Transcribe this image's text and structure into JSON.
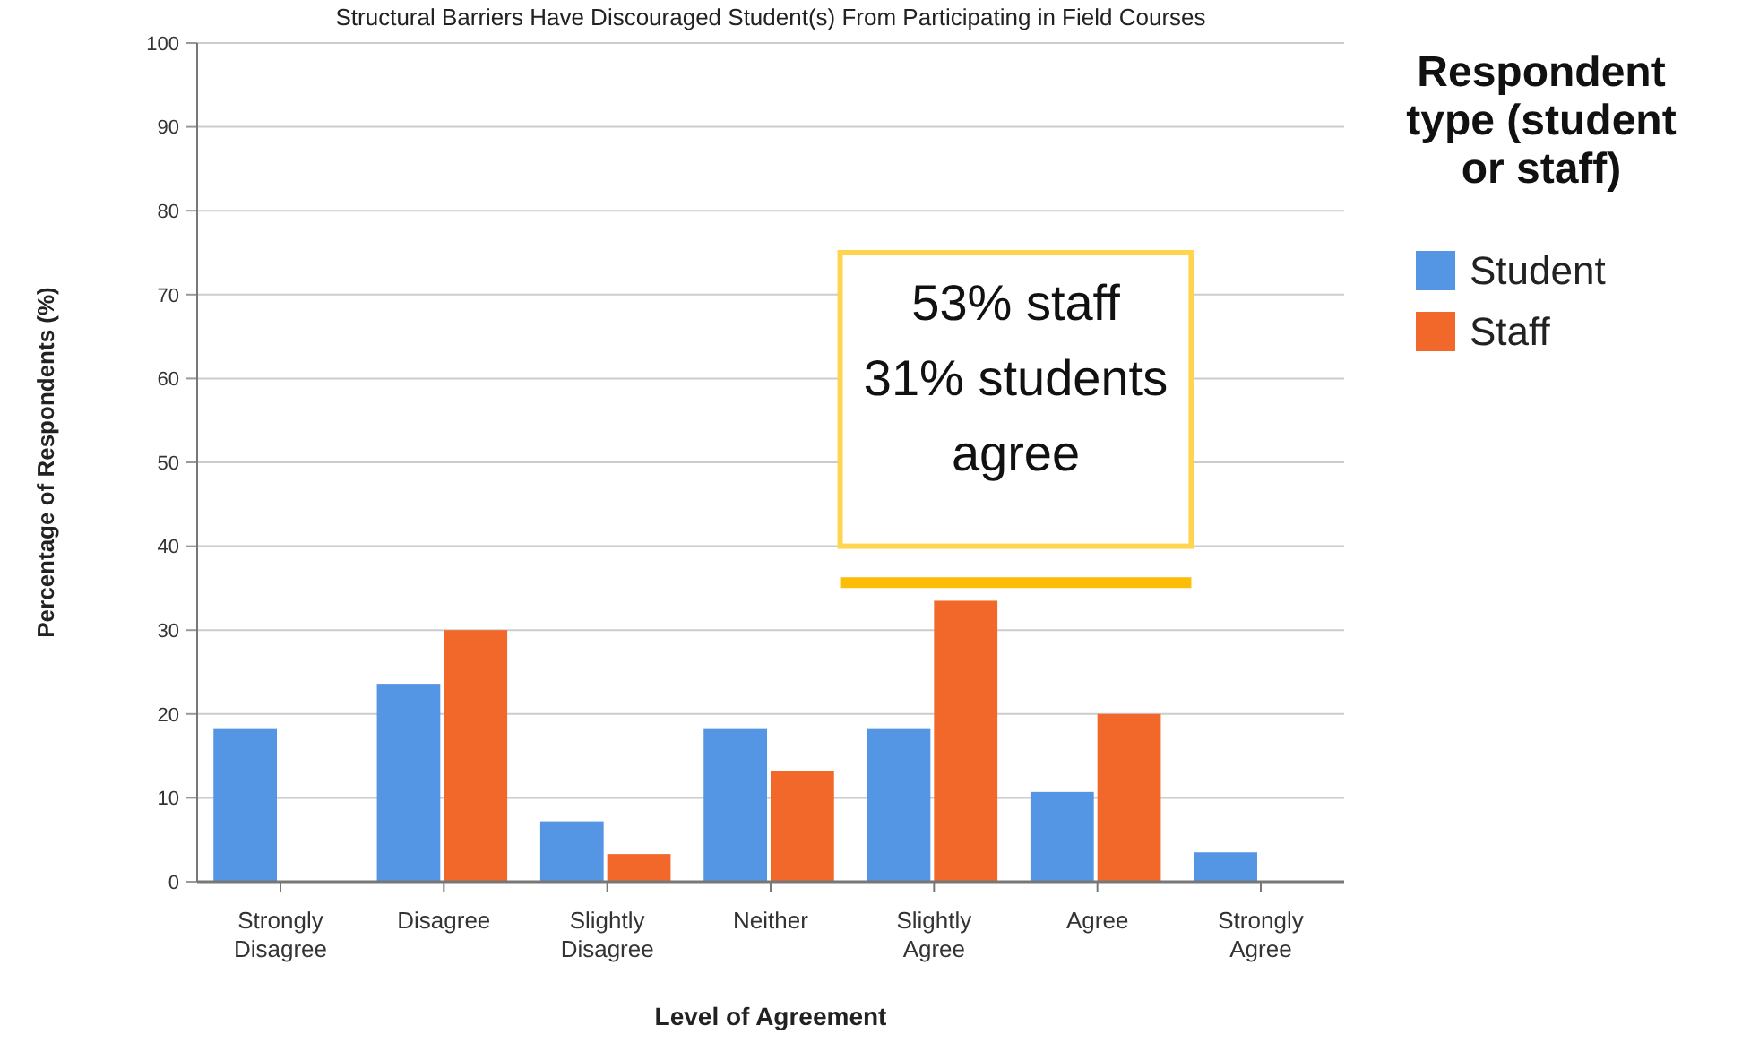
{
  "chart_data": {
    "type": "bar",
    "title": "Structural Barriers Have Discouraged Student(s) From Participating in Field Courses",
    "xlabel": "Level of Agreement",
    "ylabel": "Percentage of Respondents (%)",
    "legend_title": "Respondent type (student or staff)",
    "categories": [
      "Strongly Disagree",
      "Disagree",
      "Slightly Disagree",
      "Neither",
      "Slightly Agree",
      "Agree",
      "Strongly Agree"
    ],
    "series": [
      {
        "name": "Student",
        "color": "#5596e4",
        "values": [
          18.2,
          23.6,
          7.2,
          18.2,
          18.2,
          10.7,
          3.5
        ]
      },
      {
        "name": "Staff",
        "color": "#f2682a",
        "values": [
          0,
          30,
          3.3,
          13.2,
          33.5,
          20,
          0
        ]
      }
    ],
    "ylim": [
      0,
      100
    ],
    "yticks": [
      0,
      10,
      20,
      30,
      40,
      50,
      60,
      70,
      80,
      90,
      100
    ],
    "grid": "y",
    "legend": "right",
    "annotations": [
      "53% staff\n31% students\nagree"
    ]
  }
}
